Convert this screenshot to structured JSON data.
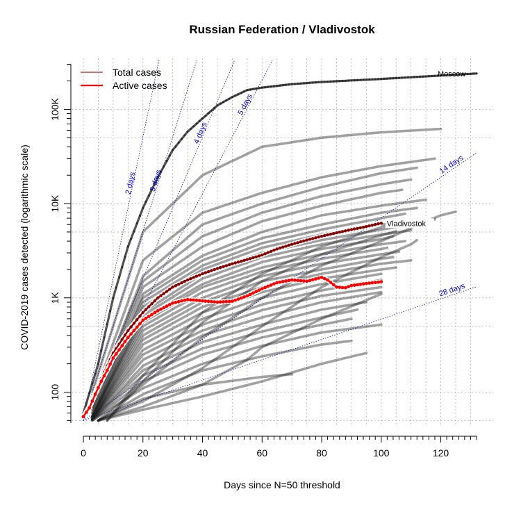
{
  "chart_data": {
    "type": "line",
    "title": "Russian Federation / Vladivostok",
    "xlabel": "Days since N=50 threshold",
    "ylabel": "COVID-2019 cases detected (logarithmic scale)",
    "x_scale": "linear",
    "y_scale": "log",
    "xlim": [
      0,
      132
    ],
    "ylim": [
      47,
      330000
    ],
    "x_ticks": [
      0,
      20,
      40,
      60,
      80,
      100,
      120
    ],
    "x_tick_labels": [
      "0",
      "20",
      "40",
      "60",
      "80",
      "100",
      "120"
    ],
    "y_ticks": [
      100,
      1000,
      10000,
      100000
    ],
    "y_tick_labels": [
      "100",
      "1K",
      "10K",
      "100K"
    ],
    "grid": true,
    "legend": {
      "placement": "top-left",
      "entries": [
        {
          "label": "Total cases",
          "color": "#b22222"
        },
        {
          "label": "Active cases",
          "color": "#ff0000"
        }
      ]
    },
    "reference_lines": [
      {
        "label": "2 days",
        "doubling_days": 2
      },
      {
        "label": "3 days",
        "doubling_days": 3
      },
      {
        "label": "4 days",
        "doubling_days": 4
      },
      {
        "label": "5 days",
        "doubling_days": 5
      },
      {
        "label": "14 days",
        "doubling_days": 14
      },
      {
        "label": "28 days",
        "doubling_days": 28
      }
    ],
    "highlighted": [
      {
        "label": "Vladivostok",
        "kind": "total",
        "color": "#8b0000",
        "x": [
          0,
          2,
          4,
          6,
          8,
          10,
          15,
          20,
          25,
          30,
          35,
          40,
          45,
          50,
          55,
          60,
          65,
          70,
          75,
          80,
          85,
          90,
          95,
          100
        ],
        "y": [
          55,
          70,
          100,
          140,
          190,
          260,
          450,
          700,
          1000,
          1300,
          1550,
          1800,
          2050,
          2300,
          2550,
          2850,
          3300,
          3700,
          4100,
          4500,
          4900,
          5300,
          5700,
          6200
        ]
      },
      {
        "kind": "active",
        "color": "#ff0000",
        "x": [
          0,
          2,
          4,
          6,
          8,
          10,
          15,
          20,
          25,
          30,
          35,
          40,
          45,
          50,
          55,
          60,
          65,
          70,
          75,
          80,
          82,
          85,
          88,
          90,
          95,
          100
        ],
        "y": [
          55,
          68,
          95,
          130,
          170,
          230,
          380,
          580,
          730,
          880,
          960,
          930,
          900,
          920,
          1050,
          1250,
          1450,
          1550,
          1500,
          1650,
          1550,
          1300,
          1280,
          1350,
          1420,
          1480
        ]
      }
    ],
    "other_regions": [
      {
        "label": "Moscow",
        "x": [
          0,
          5,
          10,
          15,
          20,
          25,
          30,
          35,
          40,
          45,
          50,
          55,
          60,
          70,
          80,
          100,
          132
        ],
        "y": [
          60,
          200,
          1000,
          3500,
          9000,
          19000,
          37000,
          58000,
          80000,
          110000,
          135000,
          160000,
          170000,
          185000,
          195000,
          210000,
          240000
        ]
      },
      {
        "x": [
          3,
          20,
          40,
          60,
          80,
          100,
          120
        ],
        "y": [
          100,
          5000,
          20000,
          40000,
          50000,
          57000,
          62000
        ]
      },
      {
        "x": [
          3,
          20,
          40,
          60,
          80,
          100,
          118
        ],
        "y": [
          80,
          2500,
          8000,
          13000,
          19000,
          25000,
          30000
        ]
      },
      {
        "x": [
          3,
          20,
          40,
          60,
          80,
          100,
          112
        ],
        "y": [
          70,
          1700,
          6000,
          10000,
          15000,
          21000,
          24000
        ]
      },
      {
        "x": [
          3,
          20,
          40,
          60,
          80,
          100,
          110
        ],
        "y": [
          70,
          1500,
          4500,
          8000,
          12000,
          16000,
          18000
        ]
      },
      {
        "x": [
          3,
          20,
          40,
          60,
          80,
          100,
          107
        ],
        "y": [
          65,
          1300,
          3500,
          6500,
          9500,
          13000,
          14000
        ]
      },
      {
        "x": [
          3,
          20,
          40,
          60,
          80,
          100,
          115
        ],
        "y": [
          60,
          1100,
          2800,
          5000,
          7500,
          9500,
          11000
        ]
      },
      {
        "x": [
          3,
          20,
          40,
          60,
          80,
          100,
          112
        ],
        "y": [
          60,
          1000,
          2500,
          4300,
          6000,
          8000,
          9000
        ]
      },
      {
        "x": [
          3,
          20,
          40,
          60,
          80,
          100,
          108
        ],
        "y": [
          55,
          900,
          2200,
          3800,
          5300,
          7000,
          7800
        ]
      },
      {
        "x": [
          3,
          20,
          40,
          60,
          80,
          100,
          118
        ],
        "y": [
          55,
          800,
          2000,
          3400,
          4700,
          6000,
          6800
        ]
      },
      {
        "x": [
          3,
          20,
          40,
          60,
          80,
          100,
          106
        ],
        "y": [
          55,
          700,
          1800,
          3000,
          4100,
          5300,
          5700
        ]
      },
      {
        "x": [
          3,
          20,
          40,
          60,
          80,
          100,
          110
        ],
        "y": [
          55,
          650,
          1600,
          2700,
          3700,
          4700,
          5200
        ]
      },
      {
        "x": [
          3,
          20,
          40,
          60,
          80,
          100,
          104
        ],
        "y": [
          55,
          600,
          1400,
          2400,
          3300,
          4200,
          4500
        ]
      },
      {
        "x": [
          3,
          20,
          40,
          60,
          80,
          100,
          108
        ],
        "y": [
          55,
          550,
          1300,
          2100,
          2900,
          3700,
          4000
        ]
      },
      {
        "x": [
          3,
          20,
          40,
          60,
          80,
          100,
          102
        ],
        "y": [
          52,
          500,
          1150,
          1900,
          2600,
          3300,
          3400
        ]
      },
      {
        "x": [
          3,
          20,
          40,
          60,
          80,
          100,
          106
        ],
        "y": [
          52,
          450,
          1000,
          1700,
          2300,
          2900,
          3100
        ]
      },
      {
        "x": [
          3,
          20,
          40,
          60,
          80,
          100,
          104
        ],
        "y": [
          52,
          400,
          900,
          1500,
          2000,
          2600,
          2700
        ]
      },
      {
        "x": [
          3,
          20,
          40,
          60,
          80,
          100,
          110
        ],
        "y": [
          52,
          360,
          800,
          1300,
          1800,
          2300,
          2500
        ]
      },
      {
        "x": [
          3,
          20,
          40,
          60,
          80,
          100,
          105
        ],
        "y": [
          52,
          320,
          700,
          1150,
          1600,
          2000,
          2100
        ]
      },
      {
        "x": [
          3,
          20,
          40,
          60,
          80,
          100
        ],
        "y": [
          52,
          280,
          600,
          1000,
          1400,
          1800
        ]
      },
      {
        "x": [
          3,
          20,
          40,
          60,
          80,
          100
        ],
        "y": [
          52,
          250,
          520,
          850,
          1200,
          1550
        ]
      },
      {
        "x": [
          3,
          20,
          40,
          60,
          80,
          100
        ],
        "y": [
          52,
          220,
          450,
          740,
          1050,
          1300
        ]
      },
      {
        "x": [
          3,
          20,
          40,
          60,
          80,
          100
        ],
        "y": [
          51,
          190,
          400,
          620,
          900,
          1150
        ]
      },
      {
        "x": [
          3,
          20,
          40,
          60,
          80,
          95
        ],
        "y": [
          51,
          170,
          340,
          520,
          750,
          900
        ]
      },
      {
        "x": [
          3,
          20,
          40,
          60,
          80,
          92
        ],
        "y": [
          51,
          150,
          290,
          440,
          620,
          750
        ]
      },
      {
        "x": [
          3,
          20,
          40,
          60,
          80,
          90
        ],
        "y": [
          50,
          130,
          250,
          380,
          520,
          600
        ]
      },
      {
        "x": [
          3,
          20,
          40,
          60,
          80,
          100
        ],
        "y": [
          50,
          110,
          200,
          310,
          430,
          520
        ]
      },
      {
        "x": [
          5,
          20,
          40,
          60,
          80,
          90
        ],
        "y": [
          50,
          95,
          170,
          240,
          320,
          350
        ]
      },
      {
        "x": [
          5,
          20,
          40,
          60,
          70
        ],
        "y": [
          50,
          85,
          120,
          145,
          155
        ]
      },
      {
        "x": [
          5,
          20,
          40,
          60,
          80,
          100,
          110,
          115,
          120,
          125
        ],
        "y": [
          50,
          120,
          380,
          1000,
          2200,
          4000,
          5500,
          6500,
          7500,
          8200
        ]
      },
      {
        "x": [
          5,
          20,
          40,
          60,
          80,
          100,
          110,
          112
        ],
        "y": [
          50,
          80,
          180,
          500,
          1300,
          2700,
          3700,
          4100
        ]
      },
      {
        "x": [
          5,
          20,
          40,
          55,
          60,
          80,
          100
        ],
        "y": [
          50,
          70,
          120,
          220,
          300,
          600,
          1100
        ]
      },
      {
        "x": [
          5,
          20,
          40,
          60,
          80,
          95
        ],
        "y": [
          50,
          65,
          90,
          130,
          200,
          260
        ]
      },
      {
        "x": [
          8,
          20,
          40,
          60,
          80,
          100,
          108
        ],
        "y": [
          50,
          150,
          700,
          1800,
          3500,
          5600,
          6500
        ]
      },
      {
        "x": [
          8,
          20,
          40,
          60,
          80,
          100,
          105
        ],
        "y": [
          50,
          130,
          550,
          1500,
          2900,
          4600,
          5100
        ]
      }
    ]
  }
}
